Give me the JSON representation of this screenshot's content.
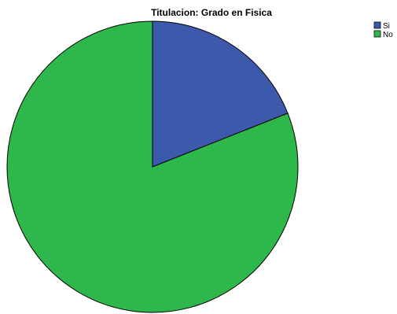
{
  "chart_data": {
    "type": "pie",
    "title": "Titulacion: Grado en Fisica",
    "categories": [
      "Si",
      "No"
    ],
    "values": [
      19,
      81
    ],
    "colors": [
      "#3D59AB",
      "#2EB84B"
    ],
    "legend_position": "top-right"
  }
}
